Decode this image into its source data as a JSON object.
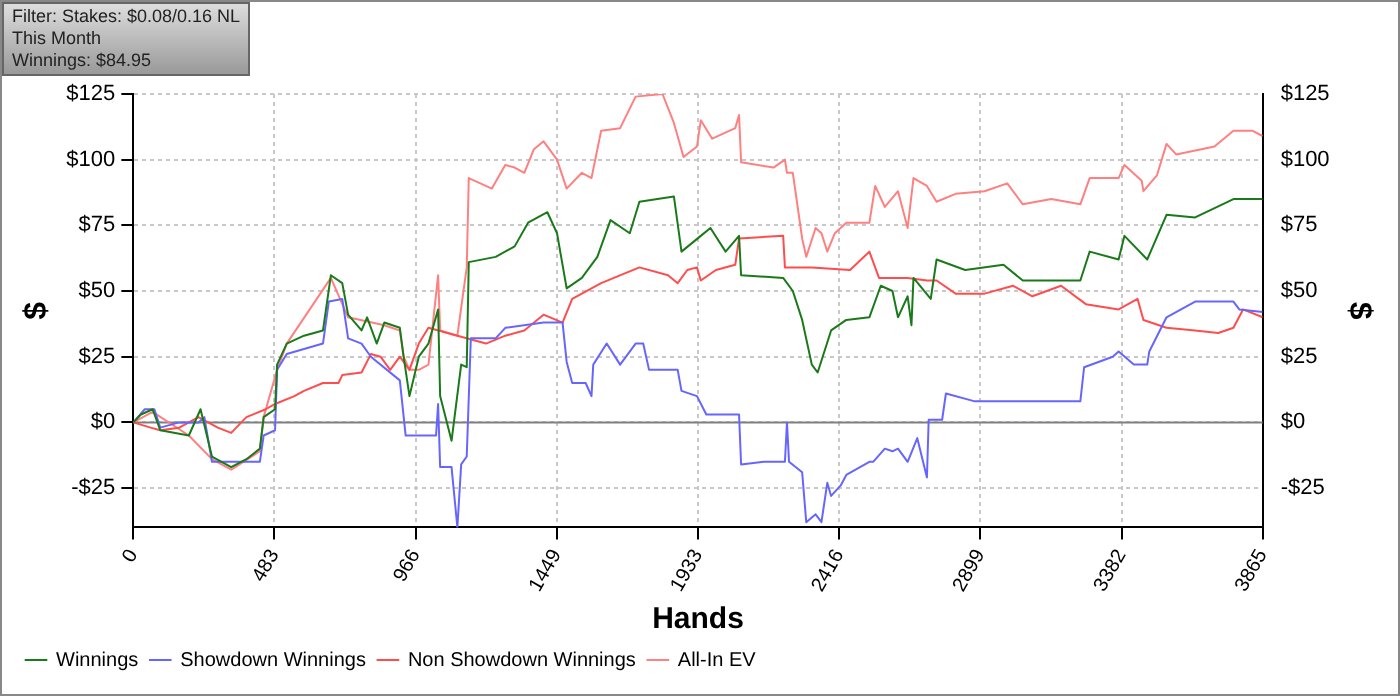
{
  "chart_data": {
    "type": "line",
    "annotations": [
      "Filter: Stakes: $0.08/0.16 NL",
      "This Month",
      "Winnings: $84.95"
    ],
    "xlabel": "Hands",
    "ylabel": "$",
    "y2label": "$",
    "xlim": [
      0,
      3865
    ],
    "xticks": [
      0,
      483,
      966,
      1449,
      1933,
      2416,
      2899,
      3382,
      3865
    ],
    "ylim": [
      -40,
      125
    ],
    "yticks": [
      {
        "value": -25,
        "label": "-$25"
      },
      {
        "value": 0,
        "label": "$0"
      },
      {
        "value": 25,
        "label": "$25"
      },
      {
        "value": 50,
        "label": "$50"
      },
      {
        "value": 75,
        "label": "$75"
      },
      {
        "value": 100,
        "label": "$100"
      },
      {
        "value": 125,
        "label": "$125"
      }
    ],
    "y2lim": [
      -40,
      125
    ],
    "y2ticks": [
      {
        "value": -25,
        "label": "-$25"
      },
      {
        "value": 0,
        "label": "$0"
      },
      {
        "value": 25,
        "label": "$25"
      },
      {
        "value": 50,
        "label": "$50"
      },
      {
        "value": 75,
        "label": "$75"
      },
      {
        "value": 100,
        "label": "$100"
      },
      {
        "value": 125,
        "label": "$125"
      }
    ],
    "grid": true,
    "legend": "bottom",
    "marker": "none",
    "line_style": "solid",
    "ref_lines": [
      {
        "axis": "y",
        "value": 0,
        "color": "#808080"
      }
    ],
    "series": [
      {
        "name": "Winnings",
        "color": "#1a7a1a",
        "x": [
          0,
          26,
          66,
          92,
          190,
          230,
          269,
          335,
          387,
          433,
          446,
          485,
          492,
          525,
          584,
          649,
          676,
          715,
          735,
          781,
          800,
          833,
          859,
          912,
          925,
          945,
          977,
          1010,
          1043,
          1050,
          1089,
          1122,
          1141,
          1148,
          1240,
          1305,
          1351,
          1417,
          1450,
          1483,
          1535,
          1588,
          1633,
          1699,
          1732,
          1850,
          1876,
          1942,
          1975,
          2027,
          2073,
          2080,
          2224,
          2257,
          2289,
          2322,
          2342,
          2388,
          2440,
          2519,
          2558,
          2598,
          2617,
          2650,
          2663,
          2670,
          2729,
          2749,
          2847,
          2978,
          3044,
          3241,
          3273,
          3372,
          3392,
          3470,
          3536,
          3634,
          3765,
          3865
        ],
        "values": [
          0,
          3,
          5,
          -3,
          -5,
          5,
          -13,
          -17,
          -14,
          -10,
          2,
          5,
          22,
          30,
          33,
          35,
          56,
          53,
          41,
          35,
          40,
          30,
          38,
          36,
          25,
          10,
          25,
          30,
          43,
          10,
          -7,
          22,
          21,
          61,
          63,
          67,
          76,
          80,
          72,
          51,
          55,
          63,
          77,
          72,
          84,
          86,
          65,
          71,
          74,
          65,
          71,
          56,
          55,
          50,
          39,
          22,
          19,
          35,
          39,
          40,
          52,
          50,
          40,
          48,
          37,
          55,
          47,
          62,
          58,
          60,
          54,
          54,
          65,
          62,
          71,
          62,
          79,
          78,
          85,
          85
        ]
      },
      {
        "name": "Showdown Winnings",
        "color": "#6666ff",
        "x": [
          0,
          39,
          72,
          92,
          157,
          223,
          243,
          269,
          433,
          446,
          485,
          492,
          525,
          649,
          669,
          715,
          735,
          781,
          813,
          912,
          932,
          1036,
          1043,
          1050,
          1089,
          1109,
          1122,
          1141,
          1155,
          1240,
          1273,
          1404,
          1469,
          1483,
          1502,
          1548,
          1568,
          1574,
          1620,
          1666,
          1719,
          1745,
          1765,
          1863,
          1876,
          1929,
          1961,
          2073,
          2080,
          2158,
          2230,
          2237,
          2244,
          2289,
          2303,
          2335,
          2355,
          2375,
          2388,
          2421,
          2440,
          2519,
          2532,
          2572,
          2598,
          2617,
          2650,
          2683,
          2716,
          2722,
          2768,
          2781,
          2880,
          3241,
          3254,
          3352,
          3372,
          3424,
          3470,
          3477,
          3536,
          3634,
          3765,
          3785,
          3865
        ],
        "values": [
          0,
          5,
          5,
          -2,
          0,
          0,
          2,
          -15,
          -15,
          -5,
          -3,
          20,
          26,
          30,
          46,
          47,
          32,
          30,
          25,
          16,
          -5,
          -5,
          7,
          -17,
          -17,
          -40,
          -16,
          -13,
          32,
          32,
          36,
          38,
          38,
          23,
          15,
          15,
          10,
          22,
          30,
          22,
          30,
          30,
          20,
          20,
          12,
          10,
          3,
          3,
          -16,
          -15,
          -15,
          0,
          -15,
          -19,
          -38,
          -35,
          -38,
          -23,
          -28,
          -24,
          -20,
          -15,
          -15,
          -10,
          -11,
          -10,
          -15,
          -6,
          -21,
          1,
          1,
          11,
          8,
          8,
          21,
          25,
          27,
          22,
          22,
          27,
          40,
          46,
          46,
          43,
          42
        ]
      },
      {
        "name": "Non Showdown Winnings",
        "color": "#ff4d4d",
        "x": [
          0,
          59,
          92,
          157,
          223,
          289,
          335,
          387,
          453,
          485,
          551,
          584,
          649,
          702,
          715,
          781,
          813,
          846,
          879,
          912,
          945,
          977,
          1010,
          1109,
          1207,
          1273,
          1338,
          1404,
          1469,
          1502,
          1601,
          1732,
          1830,
          1863,
          1896,
          1929,
          1942,
          1994,
          2060,
          2073,
          2224,
          2230,
          2322,
          2453,
          2519,
          2552,
          2650,
          2716,
          2749,
          2814,
          2913,
          3011,
          3077,
          3175,
          3260,
          3372,
          3437,
          3457,
          3536,
          3634,
          3713,
          3765,
          3798,
          3865
        ],
        "values": [
          0,
          -2,
          -3,
          -2,
          2,
          -2,
          -4,
          2,
          5,
          7,
          10,
          12,
          15,
          15,
          18,
          19,
          26,
          25,
          20,
          25,
          20,
          30,
          36,
          33,
          30,
          33,
          35,
          41,
          38,
          47,
          53,
          59,
          56,
          53,
          58,
          59,
          54,
          58,
          60,
          70,
          71,
          59,
          59,
          58,
          65,
          55,
          55,
          54,
          54,
          49,
          49,
          52,
          48,
          52,
          45,
          43,
          47,
          39,
          36,
          35,
          34,
          36,
          43,
          40
        ]
      },
      {
        "name": "All-In EV",
        "color": "#ff8080",
        "x": [
          0,
          66,
          190,
          269,
          335,
          433,
          446,
          492,
          525,
          676,
          735,
          859,
          912,
          925,
          945,
          977,
          1010,
          1043,
          1050,
          1109,
          1141,
          1148,
          1227,
          1273,
          1305,
          1338,
          1371,
          1404,
          1450,
          1483,
          1535,
          1568,
          1601,
          1666,
          1719,
          1811,
          1850,
          1883,
          1929,
          1942,
          1981,
          2060,
          2073,
          2080,
          2191,
          2230,
          2237,
          2257,
          2289,
          2303,
          2335,
          2355,
          2375,
          2401,
          2440,
          2519,
          2539,
          2572,
          2617,
          2650,
          2670,
          2716,
          2749,
          2814,
          2913,
          2991,
          3044,
          3142,
          3241,
          3273,
          3372,
          3392,
          3451,
          3457,
          3503,
          3536,
          3569,
          3700,
          3765,
          3831,
          3865
        ],
        "values": [
          0,
          4,
          -5,
          -14,
          -18,
          -11,
          2,
          20,
          30,
          55,
          40,
          37,
          35,
          25,
          20,
          20,
          22,
          56,
          35,
          33,
          59,
          93,
          89,
          98,
          97,
          95,
          104,
          107,
          100,
          89,
          95,
          93,
          111,
          112,
          124,
          125,
          114,
          101,
          105,
          115,
          108,
          112,
          117,
          99,
          97,
          100,
          95,
          95,
          70,
          63,
          74,
          72,
          65,
          72,
          76,
          76,
          90,
          82,
          88,
          74,
          93,
          90,
          84,
          87,
          88,
          91,
          83,
          85,
          83,
          93,
          93,
          98,
          92,
          88,
          94,
          106,
          102,
          105,
          111,
          111,
          109
        ]
      }
    ]
  }
}
